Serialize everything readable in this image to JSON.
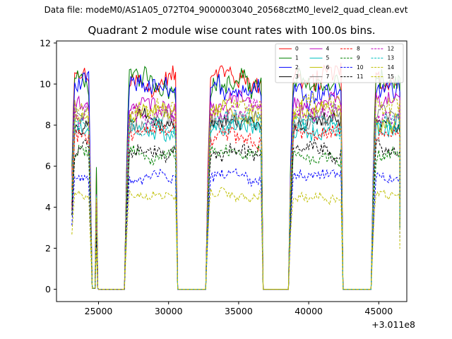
{
  "figure": {
    "suptitle": "Data file: modeM0/AS1A05_072T04_9000003040_20568cztM0_level2_quad_clean.evt"
  },
  "chart_data": {
    "type": "line",
    "title": "Quadrant 2 module wise count rates with 100.0s bins.",
    "xlabel": "",
    "ylabel": "",
    "x_offset_label": "+3.011e8",
    "xlim": [
      22000,
      47000
    ],
    "ylim": [
      -0.6,
      12.1
    ],
    "xticks": [
      25000,
      30000,
      35000,
      40000,
      45000
    ],
    "yticks": [
      0,
      2,
      4,
      6,
      8,
      10,
      12
    ],
    "grid": false,
    "legend_position": "top-right",
    "bin_size_s": 100,
    "orbit_segments": [
      [
        23100,
        24300
      ],
      [
        27000,
        30500
      ],
      [
        32800,
        36600
      ],
      [
        38700,
        42300
      ],
      [
        44600,
        46500
      ]
    ],
    "gap_level": 0,
    "series": [
      {
        "name": "0",
        "color": "#ff0000",
        "dash": "solid",
        "mean": 10.2
      },
      {
        "name": "1",
        "color": "#008000",
        "dash": "solid",
        "mean": 10.0
      },
      {
        "name": "2",
        "color": "#0000ff",
        "dash": "solid",
        "mean": 9.8
      },
      {
        "name": "3",
        "color": "#000000",
        "dash": "solid",
        "mean": 8.1
      },
      {
        "name": "4",
        "color": "#bf00bf",
        "dash": "solid",
        "mean": 9.1
      },
      {
        "name": "5",
        "color": "#00bfbf",
        "dash": "solid",
        "mean": 7.8
      },
      {
        "name": "6",
        "color": "#bfbf00",
        "dash": "solid",
        "mean": 8.5
      },
      {
        "name": "7",
        "color": "#808080",
        "dash": "solid",
        "mean": 8.3
      },
      {
        "name": "8",
        "color": "#ff0000",
        "dash": "dashed",
        "mean": 7.5
      },
      {
        "name": "9",
        "color": "#008000",
        "dash": "dashed",
        "mean": 6.5
      },
      {
        "name": "10",
        "color": "#0000ff",
        "dash": "dashed",
        "mean": 5.5
      },
      {
        "name": "11",
        "color": "#000000",
        "dash": "dashed",
        "mean": 6.7
      },
      {
        "name": "12",
        "color": "#bf00bf",
        "dash": "dashed",
        "mean": 8.6
      },
      {
        "name": "13",
        "color": "#00bfbf",
        "dash": "dashed",
        "mean": 8.1
      },
      {
        "name": "14",
        "color": "#bfbf00",
        "dash": "dashed",
        "mean": 4.6
      },
      {
        "name": "15",
        "color": "#bfbf00",
        "dash": "dashed",
        "mean": 8.9
      }
    ]
  }
}
